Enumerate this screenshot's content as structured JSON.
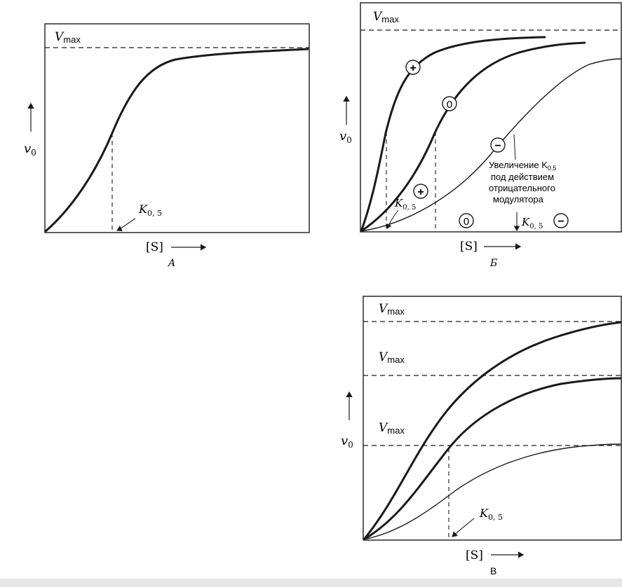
{
  "panelA": {
    "vmax": "V",
    "vmax_sub": "max",
    "y_label": "v",
    "y_sub": "0",
    "k_label": "K",
    "k_sub": "0, 5",
    "x_label": "[S]",
    "caption": "A"
  },
  "panelB": {
    "vmax": "V",
    "vmax_sub": "max",
    "y_label": "v",
    "y_sub": "0",
    "k_left": "K",
    "k_left_sub": "0, 5",
    "k_right": "K",
    "k_right_sub": "0, 5",
    "mark_plus": "+",
    "mark_zero": "0",
    "mark_minus": "−",
    "annotation": [
      "Увеличение K",
      "под действием",
      "отрицательного",
      "модулятора"
    ],
    "annotation_sub": "0,5",
    "x_label": "[S]",
    "caption": "Б"
  },
  "panelC": {
    "vmax_top": "V",
    "vmax_mid": "V",
    "vmax_low": "V",
    "vmax_sub": "max",
    "y_label": "v",
    "y_sub": "0",
    "k_label": "K",
    "k_sub": "0, 5",
    "x_label": "[S]",
    "caption": "В"
  }
}
